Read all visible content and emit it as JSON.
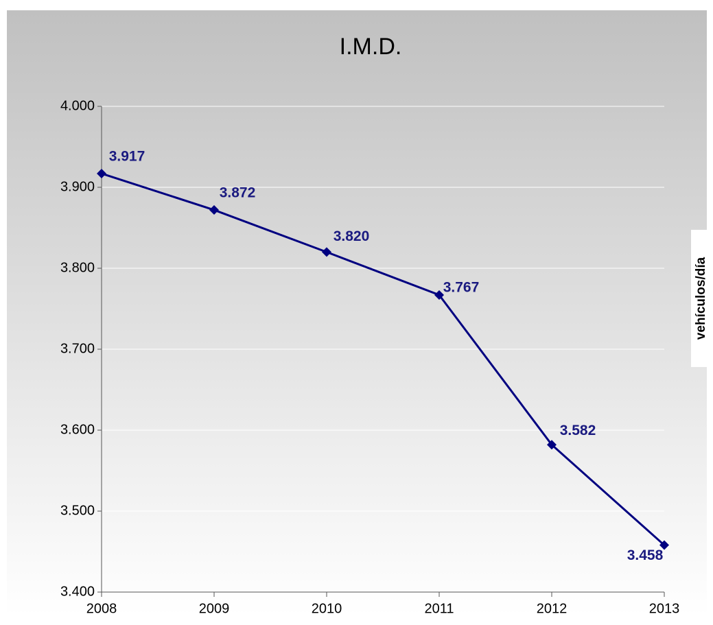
{
  "chart_data": {
    "type": "line",
    "title": "I.M.D.",
    "y_label": "vehículos/día",
    "categories": [
      "2008",
      "2009",
      "2010",
      "2011",
      "2012",
      "2013"
    ],
    "series": [
      {
        "name": "I.M.D.",
        "color": "#000080",
        "values": [
          3917,
          3872,
          3820,
          3767,
          3582,
          3458
        ],
        "value_labels": [
          "3.917",
          "3.872",
          "3.820",
          "3.767",
          "3.582",
          "3.458"
        ]
      }
    ],
    "ylim": [
      3400,
      4000
    ],
    "yticks": [
      {
        "value": 3400,
        "label": "3.400"
      },
      {
        "value": 3500,
        "label": "3.500"
      },
      {
        "value": 3600,
        "label": "3.600"
      },
      {
        "value": 3700,
        "label": "3.700"
      },
      {
        "value": 3800,
        "label": "3.800"
      },
      {
        "value": 3900,
        "label": "3.900"
      },
      {
        "value": 4000,
        "label": "4.000"
      }
    ],
    "grid": true
  }
}
